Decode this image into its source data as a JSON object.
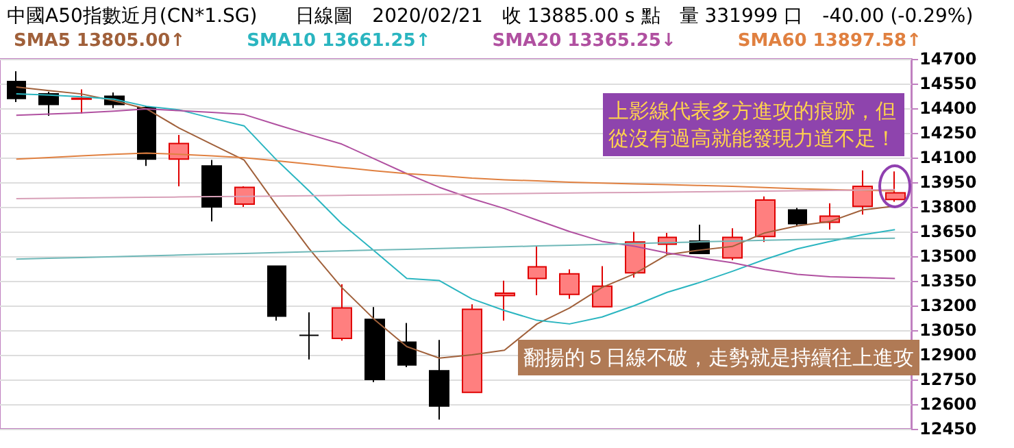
{
  "chart_data": {
    "type": "candlestick",
    "title": "中國A50指數近月(CN*1.SG)　　日線圖　2020/02/21　收 13885.00 s 點　量 331999 口　-40.00 (-0.29%)",
    "categories": [
      null,
      null,
      null,
      null,
      null,
      null,
      null,
      null,
      null,
      null,
      null,
      null,
      null,
      null,
      null,
      null,
      null,
      null,
      null,
      null,
      null,
      null,
      null,
      null,
      null,
      null,
      null,
      null
    ],
    "ohlc": [
      [
        14562,
        14625,
        14437,
        14459
      ],
      [
        14487,
        14500,
        14354,
        14423
      ],
      [
        14455,
        14515,
        14368,
        14460
      ],
      [
        14473,
        14496,
        14401,
        14423
      ],
      [
        14404,
        14412,
        14049,
        14091
      ],
      [
        14091,
        14238,
        13925,
        14185
      ],
      [
        14049,
        14085,
        13711,
        13800
      ],
      [
        13817,
        13925,
        13800,
        13919
      ],
      [
        13440,
        13443,
        13108,
        13135
      ],
      [
        13019,
        13158,
        12872,
        13019
      ],
      [
        13000,
        13329,
        12986,
        13185
      ],
      [
        13116,
        13191,
        12734,
        12750
      ],
      [
        12977,
        13094,
        12825,
        12839
      ],
      [
        12803,
        12991,
        12506,
        12589
      ],
      [
        12672,
        13207,
        12672,
        13177
      ],
      [
        13260,
        13351,
        13108,
        13275
      ],
      [
        13365,
        13559,
        13262,
        13435
      ],
      [
        13268,
        13420,
        13241,
        13393
      ],
      [
        13193,
        13440,
        13193,
        13318
      ],
      [
        13399,
        13648,
        13370,
        13586
      ],
      [
        13573,
        13642,
        13512,
        13615
      ],
      [
        13592,
        13692,
        13517,
        13517
      ],
      [
        13490,
        13670,
        13476,
        13615
      ],
      [
        13620,
        13864,
        13586,
        13842
      ],
      [
        13781,
        13794,
        13684,
        13698
      ],
      [
        13706,
        13822,
        13661,
        13744
      ],
      [
        13803,
        14022,
        13753,
        13925
      ],
      [
        13845,
        14016,
        13831,
        13885
      ]
    ],
    "colors": [
      "#000000",
      "#000000",
      "#ff7f7f",
      "#000000",
      "#000000",
      "#ff7f7f",
      "#000000",
      "#ff7f7f",
      "#000000",
      "#000000",
      "#ff7f7f",
      "#000000",
      "#000000",
      "#000000",
      "#ff7f7f",
      "#ff7f7f",
      "#ff7f7f",
      "#ff7f7f",
      "#ff7f7f",
      "#ff7f7f",
      "#ff7f7f",
      "#000000",
      "#ff7f7f",
      "#ff7f7f",
      "#000000",
      "#ff7f7f",
      "#ff7f7f",
      "#ff7f7f"
    ],
    "series": [
      {
        "type": "line",
        "name": "SMA5 13805.00↑",
        "color": "#a0603a",
        "values": [
          14529,
          14507,
          14487,
          14446,
          14396,
          14280,
          14182,
          14085,
          13809,
          13545,
          13310,
          13116,
          12950,
          12880,
          12900,
          12928,
          13088,
          13185,
          13310,
          13393,
          13509,
          13537,
          13559,
          13642,
          13684,
          13711,
          13781,
          13805
        ]
      },
      {
        "type": "line",
        "name": "SMA10 13661.25↑",
        "color": "#2ab5c0",
        "values": [
          14487,
          14480,
          14470,
          14455,
          14412,
          14390,
          14340,
          14293,
          14085,
          13897,
          13698,
          13532,
          13365,
          13352,
          13240,
          13170,
          13110,
          13088,
          13130,
          13200,
          13280,
          13340,
          13408,
          13480,
          13545,
          13590,
          13630,
          13661
        ]
      },
      {
        "type": "line",
        "name": "SMA20 13365.25↓",
        "color": "#b050a0",
        "values": [
          14357,
          14365,
          14372,
          14382,
          14396,
          14385,
          14375,
          14362,
          14300,
          14240,
          14182,
          14092,
          14002,
          13919,
          13850,
          13790,
          13720,
          13650,
          13590,
          13560,
          13520,
          13490,
          13460,
          13420,
          13390,
          13375,
          13370,
          13365
        ]
      },
      {
        "type": "line",
        "name": "SMA60 13897.58↑",
        "color": "#e08040",
        "values": [
          14091,
          14100,
          14110,
          14120,
          14127,
          14120,
          14110,
          14099,
          14080,
          14060,
          14040,
          14020,
          14002,
          13990,
          13975,
          13965,
          13958,
          13950,
          13945,
          13940,
          13935,
          13930,
          13925,
          13918,
          13910,
          13905,
          13900,
          13898
        ]
      },
      {
        "type": "line",
        "color": "#d8a0b8",
        "values": [
          13850,
          13852,
          13854,
          13856,
          13858,
          13860,
          13862,
          13864,
          13866,
          13868,
          13870,
          13872,
          13874,
          13876,
          13878,
          13880,
          13882,
          13884,
          13886,
          13888,
          13890,
          13892,
          13894,
          13896,
          13898,
          13900,
          13902,
          13905
        ]
      },
      {
        "type": "line",
        "color": "#6fb8b8",
        "values": [
          13482,
          13487,
          13492,
          13497,
          13502,
          13507,
          13512,
          13517,
          13522,
          13527,
          13532,
          13537,
          13542,
          13547,
          13552,
          13557,
          13562,
          13567,
          13572,
          13577,
          13582,
          13587,
          13592,
          13597,
          13601,
          13604,
          13607,
          13609
        ]
      }
    ],
    "ylim": [
      12450,
      14700
    ],
    "yticks": [
      12450,
      12600,
      12750,
      12900,
      13050,
      13200,
      13350,
      13500,
      13650,
      13800,
      13950,
      14100,
      14250,
      14400,
      14550,
      14700
    ],
    "grid": "y",
    "legend": "top left",
    "marker": "none",
    "line_style": "solid",
    "annotations": [
      "上影線代表多方進攻的痕跡，但從沒有過高就能發現力道不足！",
      "翻揚的５日線不破，走勢就是持續往上進攻"
    ]
  }
}
